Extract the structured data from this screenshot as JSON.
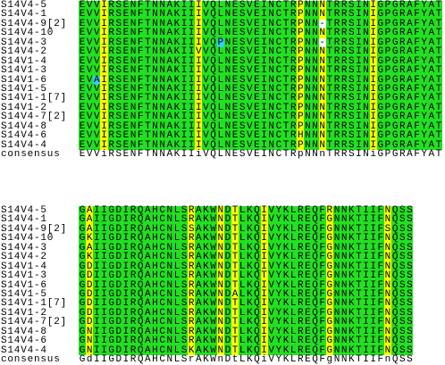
{
  "colors": {
    "identical": "#22e022",
    "similar": "#ffff00",
    "different": "#33ccff"
  },
  "blocks": [
    {
      "rows": [
        {
          "name": "S14V4-5",
          "sequence": "EVVIRSENFTNNAKIIIVQLNESVEINCTRPNNNTRRSINIGPGRAFYAT"
        },
        {
          "name": "S14V4-1",
          "sequence": "EVVIRSENFTNNAKIIIVQLNESVEINCTRPNNNTRRSINIGPGRAFYAT"
        },
        {
          "name": "S14V4-9[2]",
          "sequence": "EVVIRSENFTNNAKIIIVQLNESVEINCTRPNN-TRRSINIGPGRAFYAT"
        },
        {
          "name": "S14V4-10",
          "sequence": "EVVIRSENFTNNAKIIIVQLNESVEINCTRPNNNTRRSINIGPGRAFYAT"
        },
        {
          "name": "S14V4-3",
          "sequence": "EVVIRSENFTNNAKIIIVQPNESVEINCTRPNN-TRRSINIGPGRAFYAT"
        },
        {
          "name": "S14V4-2",
          "sequence": "EVVIRSENFTNNAKIIVVQLNESVEINCTRPNNNTRRSINIGPGRAFYAT"
        },
        {
          "name": "S14V1-4",
          "sequence": "EVVIRSENFTNNAKIIIVQLNESVEINCTRPNNNTRRSINTGPGRAFYAT"
        },
        {
          "name": "S14V1-3",
          "sequence": "EVVIRSENFTNNAKIIIVQLNESVEINCTRPNNNTRRSINIGPGRAFYAT"
        },
        {
          "name": "S14V1-6",
          "sequence": "EVAIRSENFTNNAKIIIVQLNESVEINCTRPNNNTRRSINIGPGRAFYAT"
        },
        {
          "name": "S14V1-5",
          "sequence": "EVVIRSENFTNNAKIIIVQLNESVEINCTRPNNNTRRSINIGPGRAFYAT"
        },
        {
          "name": "S14V1-1[7]",
          "sequence": "EVVIRSENFTNNAKIIIVQLNESVEINCTRPNNNTRRSINIGPGRAFYAT"
        },
        {
          "name": "S14V1-2",
          "sequence": "EVVIRSENFTNNAKIIIVQLNESVEINCTRPNNNTRRSINIGPGRAFYAT"
        },
        {
          "name": "S14V4-7[2]",
          "sequence": "EVVIRSENFTNNAKIIIVQLNESVEINCTRPNNNTRRSINIGPGRAFYAT"
        },
        {
          "name": "S14V4-8",
          "sequence": "EVVIRSENFTNNAKIIIVQLNESVEINCTRPNNNTRRSINIGPGRAFYAT"
        },
        {
          "name": "S14V4-6",
          "sequence": "EVVIRSENFTNNAKIIIVQLNESVEINCTRHNNNTRRSINIGPGRAFYAT"
        },
        {
          "name": "S14V4-4",
          "sequence": "EVVIRSENFTNNAKIIIVQLNESVEINCTRPNNNTRRSINIGPGRAFYAT"
        }
      ],
      "consensus": {
        "name": "consensus",
        "sequence": "EVViRSENFTNNAKIIiVQLNESVEINCTRpNNnTRRSINiGPGRAFYAT"
      }
    },
    {
      "rows": [
        {
          "name": "S14V4-5",
          "sequence": "GAIIGDIRQAHCNLSRAKWNDTLKQIVYKLREQFRNNKTIIFNQSS"
        },
        {
          "name": "S14V4-1",
          "sequence": "GAIIGDIRQAHCNLSRAKWNDTLKQIVYKLREQFGNNKTIIFNQSS"
        },
        {
          "name": "S14V4-9[2]",
          "sequence": "GAIIGDIRQAHCNLSSAKWNDTLKQIVYKLREQFGNNKTIIFSQSS"
        },
        {
          "name": "S14V4-10",
          "sequence": "GKIIGDIRQAHCNLSRAKWNDTLKQIVYKLREQFGNNKTIIFNQSS"
        },
        {
          "name": "S14V4-3",
          "sequence": "GAIIGDIRQAHCNLSRAKWNDTLKQIVYKLREQFGNNKTIIFNQSS"
        },
        {
          "name": "S14V4-2",
          "sequence": "GKIIGDIRQAHCNLSRAKWNDTLKQIVYKLREQFGNNKTIIFNQSS"
        },
        {
          "name": "S14V1-4",
          "sequence": "GDIIGDIRQAHCNLSRAKWNDTLKQIVYKLREQFGNNKTIIFNQSS"
        },
        {
          "name": "S14V1-3",
          "sequence": "GDIIGDIRQAHCNLSRAKWNDTLKQTVYKLREQFGNNKTIIFNQSS"
        },
        {
          "name": "S14V1-6",
          "sequence": "GDIIGDIRQAHCNLSRAKWNDTLKQIVYKLREQFGNNKTIIFNQSS"
        },
        {
          "name": "S14V1-5",
          "sequence": "GDIIGDIRQAHCNLSRAKWNDALKQIVYKLREQFGNNKTIIFNQSS"
        },
        {
          "name": "S14V1-1[7]",
          "sequence": "GDIIGDIRQAHCNLSRAKWNDTLKQIVYKLREQFGNNKTIIFNQSS"
        },
        {
          "name": "S14V1-2",
          "sequence": "GDIIGDIRQAHCNLSRAKWNDTLKQIVYKLREQFGNNKTIIFNQSS"
        },
        {
          "name": "S14V4-7[2]",
          "sequence": "GDIIGDIRQAHCNLSRAKWNDTLKQIVYKLREQFGNNKTIIFNQSS"
        },
        {
          "name": "S14V4-8",
          "sequence": "GNIIGDIRQAHCNLSRAKWNDTLKQIVYKLREQFGNNKTIIFNQSS"
        },
        {
          "name": "S14V4-6",
          "sequence": "GNIIGDIRQAHCNLSRAKWNDTLKQIVYKLREQFGNNKTIIFNQSS"
        },
        {
          "name": "S14V4-4",
          "sequence": "GNIIGDIRQAHCNLSKAKWNDTLKQIVYKLREQFGNNKTIIFNQSS"
        }
      ],
      "consensus": {
        "name": "consensus",
        "sequence": "GdIIGDIRQAHCNLSrAKWnDtLKQiVYKLREQFgNNKTIIFnQSS"
      }
    }
  ]
}
